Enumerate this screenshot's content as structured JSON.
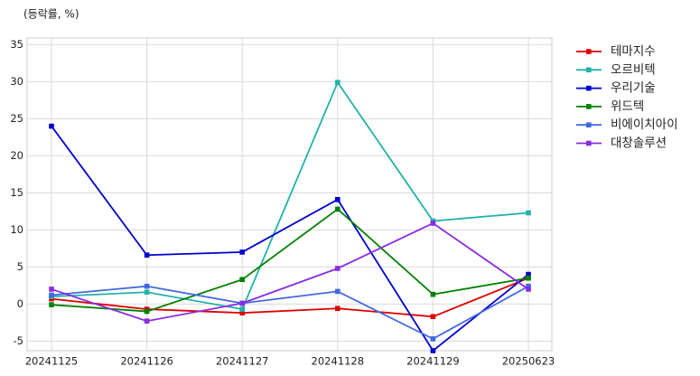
{
  "chart_data": {
    "type": "line",
    "title": "(등락률, %)",
    "categories": [
      "20241125",
      "20241126",
      "20241127",
      "20241128",
      "20241129",
      "20250623"
    ],
    "series": [
      {
        "name": "테마지수",
        "color": "#e00000",
        "values": [
          0.7,
          -0.7,
          -1.2,
          -0.6,
          -1.7,
          3.5
        ]
      },
      {
        "name": "오르비텍",
        "color": "#20b2aa",
        "values": [
          1.0,
          1.6,
          -0.7,
          29.9,
          11.2,
          12.3
        ]
      },
      {
        "name": "우리기술",
        "color": "#0000cd",
        "values": [
          24.0,
          6.6,
          7.0,
          14.1,
          -6.3,
          4.0
        ]
      },
      {
        "name": "위드텍",
        "color": "#008000",
        "values": [
          -0.1,
          -1.0,
          3.3,
          12.8,
          1.3,
          3.5
        ]
      },
      {
        "name": "비에이치아이",
        "color": "#4169e1",
        "values": [
          1.2,
          2.4,
          0.1,
          1.7,
          -4.7,
          2.4
        ]
      },
      {
        "name": "대창솔루션",
        "color": "#8a2be2",
        "values": [
          2.0,
          -2.3,
          0.1,
          4.8,
          10.9,
          2.0
        ]
      }
    ],
    "ylim": [
      -6.3,
      35.9
    ],
    "yticks": [
      -5,
      0,
      5,
      10,
      15,
      20,
      25,
      30,
      35
    ],
    "grid": true,
    "legend": "outside-right"
  }
}
